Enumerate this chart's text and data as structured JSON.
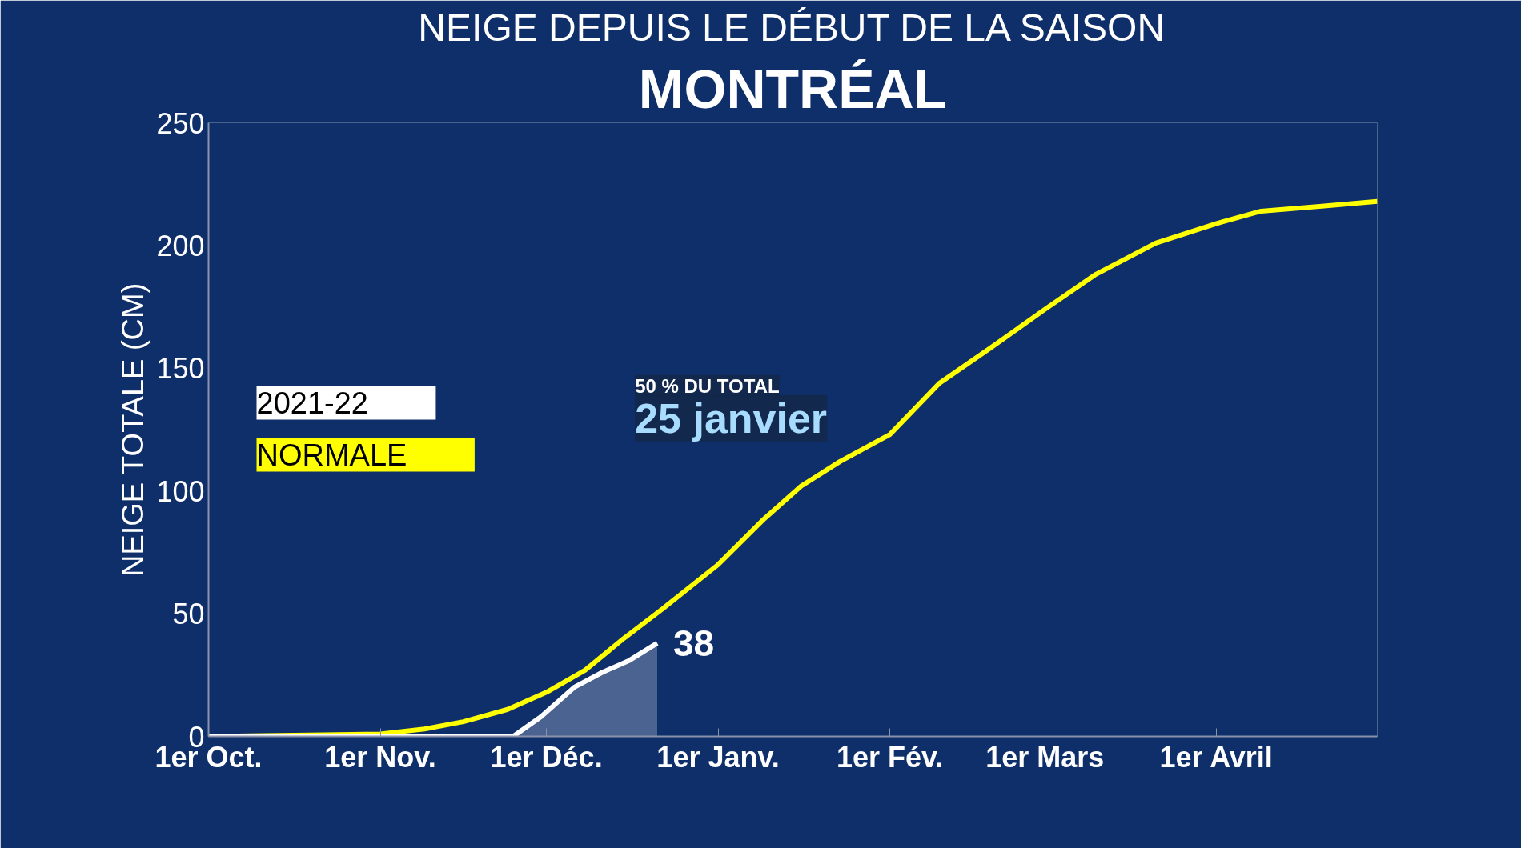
{
  "chart_data": {
    "type": "line",
    "title": "NEIGE DEPUIS LE DÉBUT DE LA SAISON",
    "subtitle": "MONTRÉAL",
    "ylabel": "NEIGE TOTALE (CM)",
    "xlim": [
      "2021-10-01",
      "2022-04-30"
    ],
    "xticks": [
      {
        "value": "2021-10-01",
        "label": "1er Oct."
      },
      {
        "value": "2021-11-01",
        "label": "1er Nov."
      },
      {
        "value": "2021-12-01",
        "label": "1er Déc."
      },
      {
        "value": "2022-01-01",
        "label": "1er Janv."
      },
      {
        "value": "2022-02-01",
        "label": "1er Fév."
      },
      {
        "value": "2022-03-01",
        "label": "1er Mars"
      },
      {
        "value": "2022-04-01",
        "label": "1er Avril"
      }
    ],
    "ylim": [
      0,
      250
    ],
    "yticks": [
      0,
      50,
      100,
      150,
      200,
      250
    ],
    "grid": false,
    "legend": "left",
    "marker": "none",
    "line_style": "solid",
    "series": [
      {
        "name": "NORMALE",
        "color": "#ffff00",
        "x": [
          "2021-10-01",
          "2021-11-01",
          "2021-11-09",
          "2021-11-16",
          "2021-11-24",
          "2021-12-01",
          "2021-12-08",
          "2021-12-15",
          "2021-12-22",
          "2022-01-01",
          "2022-01-09",
          "2022-01-16",
          "2022-01-23",
          "2022-02-01",
          "2022-02-10",
          "2022-02-19",
          "2022-03-01",
          "2022-03-10",
          "2022-03-21",
          "2022-04-01",
          "2022-04-09",
          "2022-04-20",
          "2022-04-30"
        ],
        "values": [
          0,
          1,
          3,
          6,
          11,
          18,
          27,
          40,
          52,
          70,
          88,
          102,
          112,
          123,
          144,
          158,
          174,
          188,
          201,
          209,
          214,
          216,
          218
        ]
      },
      {
        "name": "2021-22",
        "color": "#ffffff",
        "type": "area",
        "x": [
          "2021-10-01",
          "2021-11-25",
          "2021-11-30",
          "2021-12-06",
          "2021-12-11",
          "2021-12-16",
          "2021-12-21"
        ],
        "values": [
          0,
          0,
          8,
          20,
          26,
          31,
          38
        ],
        "value_labels": [
          null,
          null,
          null,
          null,
          null,
          null,
          "38"
        ]
      }
    ],
    "annotations": [
      "50 % DU TOTAL",
      {
        "text": "25 janvier",
        "x": "2022-01-25",
        "y": 113
      }
    ]
  }
}
